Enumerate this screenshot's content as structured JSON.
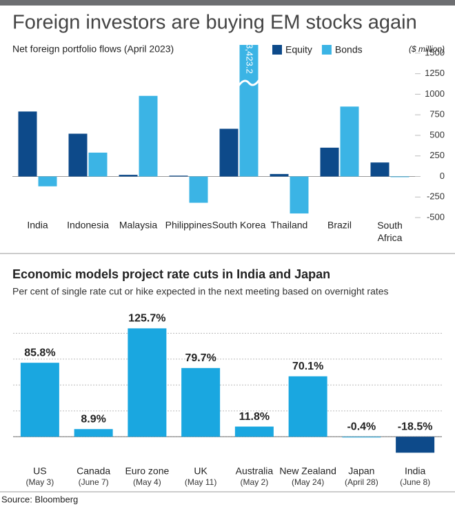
{
  "chart_data": [
    {
      "type": "grouped-bar",
      "title": "Foreign investors are buying EM stocks again",
      "subtitle": "Net foreign portfolio flows (April 2023)",
      "unit_label": "($ million)",
      "categories": [
        "India",
        "Indonesia",
        "Malaysia",
        "Philippines",
        "South Korea",
        "Thailand",
        "Brazil",
        "South Africa"
      ],
      "series": [
        {
          "name": "Equity",
          "color": "#0d4a8a",
          "values": [
            790,
            520,
            20,
            10,
            580,
            30,
            350,
            170
          ]
        },
        {
          "name": "Bonds",
          "color": "#3bb4e5",
          "values": [
            -120,
            290,
            980,
            -320,
            3423.2,
            -450,
            850,
            0
          ],
          "value_labels": [
            null,
            null,
            null,
            null,
            "3,423.2",
            null,
            null,
            null
          ]
        }
      ],
      "ylim": [
        -500,
        1600
      ],
      "yticks": [
        1500,
        1250,
        1000,
        750,
        500,
        250,
        0,
        -250,
        -500
      ],
      "axis_break": true,
      "grid": false,
      "legend": "top"
    },
    {
      "type": "bar",
      "title": "Economic models project rate cuts in India and Japan",
      "subtitle": "Per cent of single rate cut or hike expected in the next meeting based on overnight rates",
      "categories": [
        "US",
        "Canada",
        "Euro zone",
        "UK",
        "Australia",
        "New Zealand",
        "Japan",
        "India"
      ],
      "dates": [
        "(May 3)",
        "(June 7)",
        "(May 4)",
        "(May 11)",
        "(May 2)",
        "(May 24)",
        "(April 28)",
        "(June 8)"
      ],
      "values": [
        85.8,
        8.9,
        125.7,
        79.7,
        11.8,
        70.1,
        -0.4,
        -18.5
      ],
      "value_labels": [
        "85.8%",
        "8.9%",
        "125.7%",
        "79.7%",
        "11.8%",
        "70.1%",
        "-0.4%",
        "-18.5%"
      ],
      "color": "#1aa7e0",
      "ylim": [
        -27,
        134
      ],
      "yticks": [
        0,
        30,
        60,
        90,
        120
      ],
      "tick_labels": false,
      "grid": true
    }
  ],
  "source": "Source: Bloomberg"
}
